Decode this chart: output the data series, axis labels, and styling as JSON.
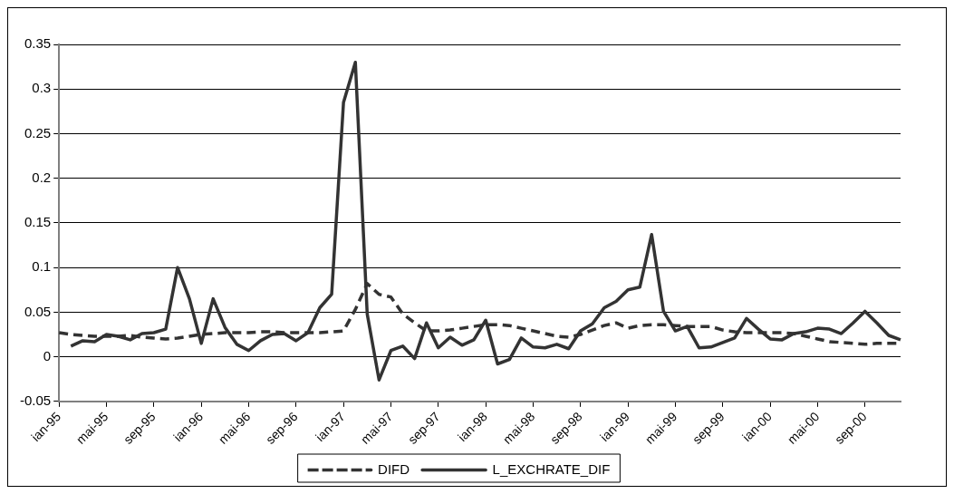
{
  "chart_data": {
    "type": "line",
    "categories": [
      "ian-95",
      null,
      null,
      null,
      "mai-95",
      null,
      null,
      null,
      "sep-95",
      null,
      null,
      null,
      "ian-96",
      null,
      null,
      null,
      "mai-96",
      null,
      null,
      null,
      "sep-96",
      null,
      null,
      null,
      "ian-97",
      null,
      null,
      null,
      "mai-97",
      null,
      null,
      null,
      "sep-97",
      null,
      null,
      null,
      "ian-98",
      null,
      null,
      null,
      "mai-98",
      null,
      null,
      null,
      "sep-98",
      null,
      null,
      null,
      "ian-99",
      null,
      null,
      null,
      "mai-99",
      null,
      null,
      null,
      "sep-99",
      null,
      null,
      null,
      "ian-00",
      null,
      null,
      null,
      "mai-00",
      null,
      null,
      null,
      "sep-00",
      null,
      null,
      null
    ],
    "series": [
      {
        "name": "DIFD",
        "color": "#333333",
        "line_style": "dashed",
        "values": [
          0.027,
          0.025,
          0.024,
          0.023,
          0.023,
          0.023,
          0.024,
          0.022,
          0.021,
          0.02,
          0.021,
          0.023,
          0.025,
          0.026,
          0.027,
          0.027,
          0.027,
          0.028,
          0.028,
          0.027,
          0.027,
          0.027,
          0.027,
          0.028,
          0.029,
          0.053,
          0.082,
          0.07,
          0.067,
          0.048,
          0.038,
          0.029,
          0.029,
          0.03,
          0.032,
          0.034,
          0.036,
          0.036,
          0.035,
          0.032,
          0.029,
          0.026,
          0.023,
          0.022,
          0.025,
          0.03,
          0.035,
          0.038,
          0.032,
          0.035,
          0.036,
          0.036,
          0.035,
          0.034,
          0.034,
          0.034,
          0.03,
          0.028,
          0.027,
          0.027,
          0.027,
          0.027,
          0.026,
          0.023,
          0.02,
          0.017,
          0.016,
          0.015,
          0.014,
          0.015,
          0.015,
          0.015
        ]
      },
      {
        "name": "L_EXCHRATE_DIF",
        "color": "#333333",
        "line_style": "solid",
        "values": [
          null,
          0.012,
          0.018,
          0.017,
          0.025,
          0.023,
          0.019,
          0.026,
          0.027,
          0.031,
          0.1,
          0.065,
          0.015,
          0.065,
          0.033,
          0.014,
          0.007,
          0.018,
          0.025,
          0.026,
          0.018,
          0.027,
          0.055,
          0.07,
          0.285,
          0.33,
          0.048,
          -0.026,
          0.007,
          0.012,
          -0.002,
          0.038,
          0.01,
          0.022,
          0.013,
          0.019,
          0.041,
          -0.008,
          -0.003,
          0.021,
          0.011,
          0.01,
          0.014,
          0.009,
          0.029,
          0.037,
          0.055,
          0.062,
          0.075,
          0.078,
          0.137,
          0.051,
          0.029,
          0.034,
          0.01,
          0.011,
          0.016,
          0.021,
          0.043,
          0.031,
          0.02,
          0.019,
          0.026,
          0.028,
          0.032,
          0.031,
          0.026,
          0.038,
          0.051,
          0.038,
          0.024,
          0.019
        ]
      }
    ],
    "ylim": [
      -0.05,
      0.35
    ],
    "yticks": [
      -0.05,
      0,
      0.05,
      0.1,
      0.15,
      0.2,
      0.25,
      0.3,
      0.35
    ],
    "grid": "y",
    "legend": "bottom",
    "marker": "none"
  }
}
